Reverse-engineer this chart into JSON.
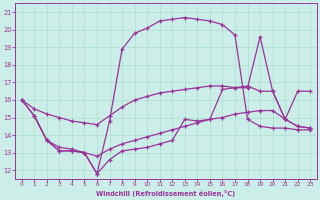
{
  "xlabel": "Windchill (Refroidissement éolien,°C)",
  "background_color": "#cceee8",
  "grid_color": "#aaddcc",
  "line_color": "#993399",
  "xlim": [
    -0.5,
    23.5
  ],
  "ylim": [
    11.5,
    21.5
  ],
  "ytick_min": 12,
  "ytick_max": 21,
  "xticks": [
    0,
    1,
    2,
    3,
    4,
    5,
    6,
    7,
    8,
    9,
    10,
    11,
    12,
    13,
    14,
    15,
    16,
    17,
    18,
    19,
    20,
    21,
    22,
    23
  ],
  "yticks": [
    12,
    13,
    14,
    15,
    16,
    17,
    18,
    19,
    20,
    21
  ],
  "line_top_x": [
    0,
    1,
    2,
    3,
    4,
    5,
    6,
    7,
    8,
    9,
    10,
    11,
    12,
    13,
    14,
    15,
    16,
    17,
    18,
    19,
    20,
    21,
    22,
    23
  ],
  "line_top_y": [
    16.0,
    15.1,
    13.7,
    13.1,
    13.1,
    13.0,
    11.8,
    14.8,
    18.9,
    19.8,
    20.1,
    20.5,
    20.6,
    20.7,
    20.6,
    20.5,
    20.3,
    19.7,
    14.9,
    14.5,
    14.4,
    14.4,
    14.3,
    14.3
  ],
  "line_mid_x": [
    0,
    1,
    2,
    3,
    4,
    5,
    6,
    7,
    8,
    9,
    10,
    11,
    12,
    13,
    14,
    15,
    16,
    17,
    18,
    19,
    20,
    21,
    22,
    23
  ],
  "line_mid_y": [
    16.0,
    15.5,
    15.2,
    15.0,
    14.8,
    14.7,
    14.6,
    15.1,
    15.6,
    16.0,
    16.2,
    16.4,
    16.5,
    16.6,
    16.7,
    16.8,
    16.8,
    16.7,
    16.7,
    19.6,
    16.5,
    14.9,
    14.5,
    14.4
  ],
  "line_low_x": [
    0,
    1,
    2,
    3,
    4,
    5,
    6,
    7,
    8,
    9,
    10,
    11,
    12,
    13,
    14,
    15,
    16,
    17,
    18,
    19,
    20,
    21,
    22,
    23
  ],
  "line_low_y": [
    16.0,
    15.1,
    13.7,
    13.3,
    13.2,
    13.0,
    12.8,
    13.2,
    13.5,
    13.7,
    13.9,
    14.1,
    14.3,
    14.5,
    14.7,
    14.9,
    15.0,
    15.2,
    15.3,
    15.4,
    15.4,
    14.9,
    14.5,
    14.4
  ],
  "line_bot_x": [
    1,
    2,
    3,
    4,
    5,
    6,
    7,
    8,
    9,
    10,
    11,
    12,
    13,
    14,
    15,
    16,
    17,
    18,
    19,
    20,
    21,
    22,
    23
  ],
  "line_bot_y": [
    15.1,
    13.7,
    13.1,
    13.1,
    13.0,
    11.8,
    12.6,
    13.1,
    13.2,
    13.3,
    13.5,
    13.7,
    14.9,
    14.8,
    14.9,
    16.6,
    16.7,
    16.8,
    16.5,
    16.5,
    14.9,
    16.5,
    16.5
  ]
}
